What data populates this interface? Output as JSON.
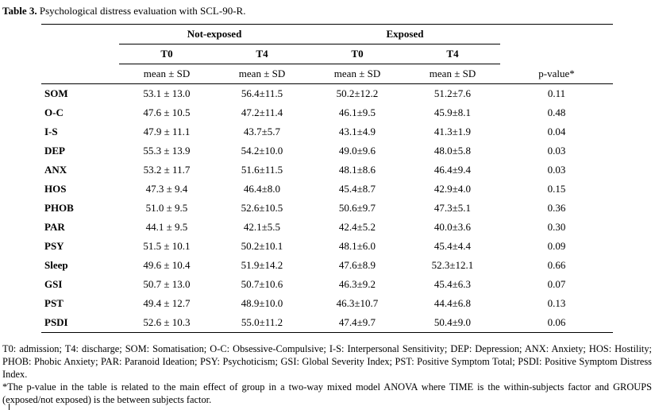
{
  "caption": {
    "label": "Table 3.",
    "text": "Psychological distress evaluation with SCL-90-R."
  },
  "groups": {
    "not_exposed": "Not-exposed",
    "exposed": "Exposed"
  },
  "timepoints": [
    "T0",
    "T4",
    "T0",
    "T4"
  ],
  "stat_headers": [
    "mean ± SD",
    "mean ± SD",
    "mean ± SD",
    "mean ± SD",
    "p-value*"
  ],
  "rows": [
    {
      "label": "SOM",
      "cells": [
        "53.1 ± 13.0",
        "56.4±11.5",
        "50.2±12.2",
        "51.2±7.6"
      ],
      "p": "0.11"
    },
    {
      "label": "O-C",
      "cells": [
        "47.6 ± 10.5",
        "47.2±11.4",
        "46.1±9.5",
        "45.9±8.1"
      ],
      "p": "0.48"
    },
    {
      "label": "I-S",
      "cells": [
        "47.9 ± 11.1",
        "43.7±5.7",
        "43.1±4.9",
        "41.3±1.9"
      ],
      "p": "0.04"
    },
    {
      "label": "DEP",
      "cells": [
        "55.3 ± 13.9",
        "54.2±10.0",
        "49.0±9.6",
        "48.0±5.8"
      ],
      "p": "0.03"
    },
    {
      "label": "ANX",
      "cells": [
        "53.2 ± 11.7",
        "51.6±11.5",
        "48.1±8.6",
        "46.4±9.4"
      ],
      "p": "0.03"
    },
    {
      "label": "HOS",
      "cells": [
        "47.3 ± 9.4",
        "46.4±8.0",
        "45.4±8.7",
        "42.9±4.0"
      ],
      "p": "0.15"
    },
    {
      "label": "PHOB",
      "cells": [
        "51.0 ± 9.5",
        "52.6±10.5",
        "50.6±9.7",
        "47.3±5.1"
      ],
      "p": "0.36"
    },
    {
      "label": "PAR",
      "cells": [
        "44.1 ± 9.5",
        "42.1±5.5",
        "42.4±5.2",
        "40.0±3.6"
      ],
      "p": "0.30"
    },
    {
      "label": "PSY",
      "cells": [
        "51.5 ± 10.1",
        "50.2±10.1",
        "48.1±6.0",
        "45.4±4.4"
      ],
      "p": "0.09"
    },
    {
      "label": "Sleep",
      "cells": [
        "49.6 ± 10.4",
        "51.9±14.2",
        "47.6±8.9",
        "52.3±12.1"
      ],
      "p": "0.66"
    },
    {
      "label": "GSI",
      "cells": [
        "50.7 ± 13.0",
        "50.7±10.6",
        "46.3±9.2",
        "45.4±6.3"
      ],
      "p": "0.07"
    },
    {
      "label": "PST",
      "cells": [
        "49.4 ± 12.7",
        "48.9±10.0",
        "46.3±10.7",
        "44.4±6.8"
      ],
      "p": "0.13"
    },
    {
      "label": "PSDI",
      "cells": [
        "52.6 ± 10.3",
        "55.0±11.2",
        "47.4±9.7",
        "50.4±9.0"
      ],
      "p": "0.06"
    }
  ],
  "footnotes": {
    "abbreviations": "T0: admission; T4: discharge; SOM: Somatisation; O-C: Obsessive-Compulsive; I-S: Interpersonal Sensitivity; DEP: Depression; ANX: Anxiety; HOS: Hostility; PHOB: Phobic Anxiety; PAR: Paranoid Ideation; PSY: Psychoticism; GSI: Global Severity Index; PST: Positive Symptom Total; PSDI: Positive Symptom Distress Index.",
    "pvalue_note": "*The p-value in the table is related to the main effect of group in a two-way mixed model ANOVA where TIME is the within-subjects factor and GROUPS (exposed/not exposed) is the between subjects factor."
  }
}
